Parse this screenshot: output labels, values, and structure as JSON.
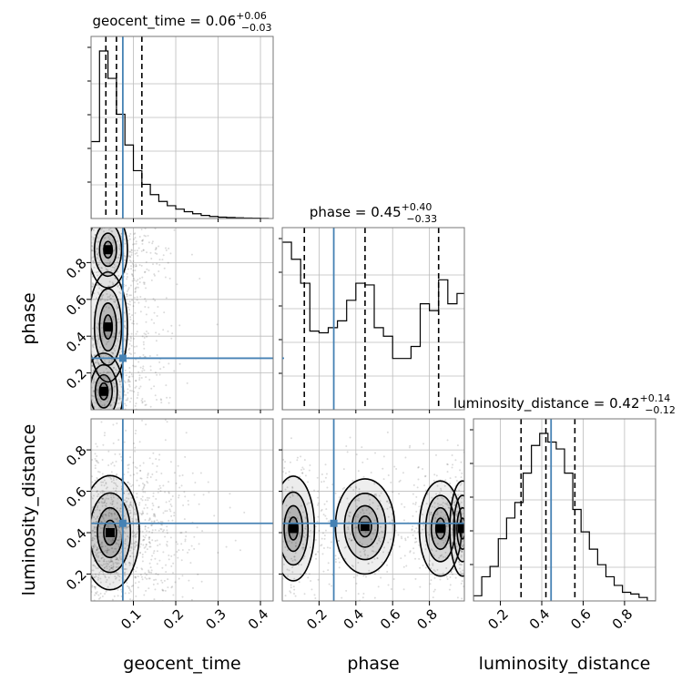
{
  "chart_data": {
    "type": "corner",
    "parameters": [
      "geocent_time",
      "phase",
      "luminosity_distance"
    ],
    "axis_labels": [
      "geocent_time",
      "phase",
      "luminosity_distance"
    ],
    "ranges": [
      [
        0.0,
        0.43
      ],
      [
        0.0,
        0.99
      ],
      [
        0.07,
        0.95
      ]
    ],
    "ticks": [
      [
        0.1,
        0.2,
        0.3,
        0.4
      ],
      [
        0.2,
        0.4,
        0.6,
        0.8
      ],
      [
        0.2,
        0.4,
        0.6,
        0.8
      ]
    ],
    "tick_labels": [
      [
        "0.1",
        "0.2",
        "0.3",
        "0.4"
      ],
      [
        "0.2",
        "0.4",
        "0.6",
        "0.8"
      ],
      [
        "0.2",
        "0.4",
        "0.6",
        "0.8"
      ]
    ],
    "truths": [
      0.075,
      0.28,
      0.445
    ],
    "truth_color": "#4682b4",
    "titles": [
      {
        "name": "geocent_time",
        "median": "0.06",
        "plus": "+0.06",
        "minus": "−0.03"
      },
      {
        "name": "phase",
        "median": "0.45",
        "plus": "+0.40",
        "minus": "−0.33"
      },
      {
        "name": "luminosity_distance",
        "median": "0.42",
        "plus": "+0.14",
        "minus": "−0.12"
      }
    ],
    "quantiles": [
      [
        0.035,
        0.06,
        0.12
      ],
      [
        0.12,
        0.45,
        0.85
      ],
      [
        0.3,
        0.42,
        0.56
      ]
    ],
    "histograms": [
      {
        "bins": [
          0.0,
          0.02,
          0.04,
          0.06,
          0.08,
          0.1,
          0.12,
          0.14,
          0.16,
          0.18,
          0.2,
          0.22,
          0.24,
          0.26,
          0.28,
          0.3,
          0.32,
          0.34,
          0.36,
          0.38,
          0.4,
          0.42
        ],
        "counts": [
          0.45,
          0.98,
          0.82,
          0.61,
          0.43,
          0.28,
          0.2,
          0.14,
          0.1,
          0.075,
          0.055,
          0.04,
          0.028,
          0.018,
          0.012,
          0.008,
          0.006,
          0.004,
          0.003,
          0.002,
          0.001
        ]
      },
      {
        "bins": [
          0.0,
          0.05,
          0.1,
          0.15,
          0.2,
          0.25,
          0.3,
          0.35,
          0.4,
          0.45,
          0.5,
          0.55,
          0.6,
          0.65,
          0.7,
          0.75,
          0.8,
          0.85,
          0.9,
          0.95,
          0.99
        ],
        "counts": [
          0.98,
          0.88,
          0.74,
          0.46,
          0.45,
          0.48,
          0.52,
          0.64,
          0.74,
          0.73,
          0.48,
          0.43,
          0.3,
          0.3,
          0.37,
          0.62,
          0.58,
          0.76,
          0.62,
          0.68
        ]
      },
      {
        "bins": [
          0.07,
          0.11,
          0.15,
          0.19,
          0.23,
          0.27,
          0.31,
          0.35,
          0.39,
          0.43,
          0.47,
          0.51,
          0.55,
          0.59,
          0.63,
          0.67,
          0.71,
          0.75,
          0.79,
          0.83,
          0.87,
          0.91,
          0.95
        ],
        "counts": [
          0.03,
          0.14,
          0.2,
          0.36,
          0.48,
          0.57,
          0.74,
          0.9,
          0.97,
          0.92,
          0.88,
          0.74,
          0.53,
          0.4,
          0.3,
          0.21,
          0.14,
          0.09,
          0.05,
          0.04,
          0.02,
          0.0
        ]
      }
    ]
  }
}
